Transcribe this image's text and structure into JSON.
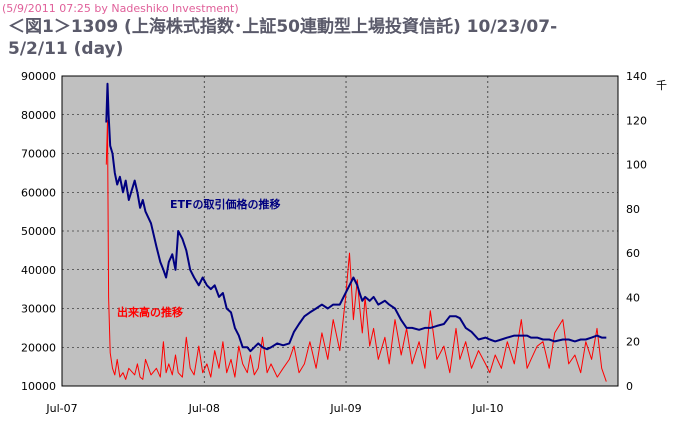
{
  "credit": "(5/9/2011 07:25 by Nadeshiko Investment)",
  "chart_data": {
    "type": "line",
    "title": "＜図1＞1309 (上海株式指数･上証50連動型上場投資信託) 10/23/07-5/2/11 (day)",
    "x_tick_labels": [
      "Jul-07",
      "Jul-08",
      "Jul-09",
      "Jul-10"
    ],
    "y_left_ticks": [
      10000,
      20000,
      30000,
      40000,
      50000,
      60000,
      70000,
      80000,
      90000
    ],
    "y_right_ticks": [
      0,
      20,
      40,
      60,
      80,
      100,
      120,
      140
    ],
    "y_right_unit": "千",
    "ylim_left": [
      10000,
      90000
    ],
    "ylim_right": [
      0,
      140
    ],
    "xlim": [
      "2007-07-01",
      "2011-06-01"
    ],
    "grid": true,
    "plot_background": "#c0c0c0",
    "series": [
      {
        "name": "ETFの取引価格の推移",
        "color": "#000080",
        "axis": "left",
        "x": [
          "2007-10-23",
          "2007-10-26",
          "2007-10-29",
          "2007-11-02",
          "2007-11-08",
          "2007-11-14",
          "2007-11-20",
          "2007-11-27",
          "2007-12-05",
          "2007-12-12",
          "2007-12-20",
          "2008-01-04",
          "2008-01-11",
          "2008-01-18",
          "2008-01-25",
          "2008-02-01",
          "2008-02-15",
          "2008-02-29",
          "2008-03-10",
          "2008-03-18",
          "2008-03-25",
          "2008-04-01",
          "2008-04-10",
          "2008-04-18",
          "2008-04-25",
          "2008-05-06",
          "2008-05-16",
          "2008-05-26",
          "2008-06-05",
          "2008-06-17",
          "2008-06-27",
          "2008-07-08",
          "2008-07-18",
          "2008-07-28",
          "2008-08-08",
          "2008-08-18",
          "2008-08-28",
          "2008-09-08",
          "2008-09-18",
          "2008-09-28",
          "2008-10-08",
          "2008-10-20",
          "2008-10-28",
          "2008-11-07",
          "2008-11-17",
          "2008-11-28",
          "2008-12-10",
          "2008-12-20",
          "2009-01-05",
          "2009-01-20",
          "2009-02-05",
          "2009-02-17",
          "2009-03-02",
          "2009-03-16",
          "2009-03-30",
          "2009-04-15",
          "2009-04-30",
          "2009-05-15",
          "2009-05-29",
          "2009-06-15",
          "2009-06-30",
          "2009-07-10",
          "2009-07-20",
          "2009-07-30",
          "2009-08-05",
          "2009-08-12",
          "2009-08-19",
          "2009-08-31",
          "2009-09-10",
          "2009-09-22",
          "2009-10-09",
          "2009-10-20",
          "2009-11-04",
          "2009-11-20",
          "2009-12-04",
          "2009-12-18",
          "2010-01-05",
          "2010-01-20",
          "2010-02-03",
          "2010-02-20",
          "2010-03-10",
          "2010-03-25",
          "2010-04-10",
          "2010-04-20",
          "2010-05-05",
          "2010-05-20",
          "2010-06-07",
          "2010-06-25",
          "2010-07-06",
          "2010-07-20",
          "2010-08-05",
          "2010-08-20",
          "2010-09-07",
          "2010-09-25",
          "2010-10-10",
          "2010-10-20",
          "2010-11-05",
          "2010-11-20",
          "2010-12-06",
          "2010-12-20",
          "2011-01-10",
          "2011-01-25",
          "2011-02-10",
          "2011-02-25",
          "2011-03-10",
          "2011-03-25",
          "2011-04-08",
          "2011-04-20",
          "2011-05-02"
        ],
        "values": [
          78000,
          88000,
          80000,
          72000,
          70000,
          65000,
          62000,
          64000,
          60000,
          63000,
          58000,
          63000,
          60000,
          56000,
          58000,
          55000,
          52000,
          46000,
          42000,
          40000,
          38000,
          42000,
          44000,
          40000,
          50000,
          48000,
          45000,
          40000,
          38000,
          36000,
          38000,
          36000,
          35000,
          36000,
          33000,
          34000,
          30000,
          29000,
          25000,
          23000,
          20000,
          20000,
          19000,
          20000,
          21000,
          20000,
          19500,
          20000,
          21000,
          20500,
          21000,
          24000,
          26000,
          28000,
          29000,
          30000,
          31000,
          30000,
          31000,
          31000,
          34000,
          36000,
          38000,
          36000,
          34000,
          32000,
          33000,
          32000,
          33000,
          31000,
          32000,
          31000,
          30000,
          27000,
          25000,
          25000,
          24500,
          25000,
          25000,
          25500,
          26000,
          28000,
          28000,
          27500,
          25000,
          24000,
          22000,
          22500,
          22000,
          21500,
          22000,
          22500,
          23000,
          23000,
          23000,
          22500,
          22500,
          22000,
          22000,
          21500,
          22000,
          22000,
          21500,
          22000,
          22000,
          22500,
          23000,
          22500,
          22500
        ]
      },
      {
        "name": "出来高の推移",
        "color": "#ff0000",
        "axis": "right",
        "x": [
          "2007-10-23",
          "2007-10-26",
          "2007-10-29",
          "2007-11-02",
          "2007-11-08",
          "2007-11-14",
          "2007-11-20",
          "2007-11-27",
          "2007-12-05",
          "2007-12-12",
          "2007-12-20",
          "2008-01-04",
          "2008-01-11",
          "2008-01-18",
          "2008-01-25",
          "2008-02-01",
          "2008-02-15",
          "2008-02-29",
          "2008-03-10",
          "2008-03-18",
          "2008-03-25",
          "2008-04-01",
          "2008-04-10",
          "2008-04-18",
          "2008-04-25",
          "2008-05-06",
          "2008-05-16",
          "2008-05-26",
          "2008-06-05",
          "2008-06-17",
          "2008-06-27",
          "2008-07-08",
          "2008-07-18",
          "2008-07-28",
          "2008-08-08",
          "2008-08-18",
          "2008-08-28",
          "2008-09-08",
          "2008-09-18",
          "2008-09-28",
          "2008-10-08",
          "2008-10-20",
          "2008-10-28",
          "2008-11-07",
          "2008-11-17",
          "2008-11-28",
          "2008-12-10",
          "2008-12-20",
          "2009-01-05",
          "2009-01-20",
          "2009-02-05",
          "2009-02-17",
          "2009-03-02",
          "2009-03-16",
          "2009-03-30",
          "2009-04-15",
          "2009-04-30",
          "2009-05-15",
          "2009-05-29",
          "2009-06-15",
          "2009-06-30",
          "2009-07-10",
          "2009-07-20",
          "2009-07-30",
          "2009-08-05",
          "2009-08-12",
          "2009-08-19",
          "2009-08-31",
          "2009-09-10",
          "2009-09-22",
          "2009-10-09",
          "2009-10-20",
          "2009-11-04",
          "2009-11-20",
          "2009-12-04",
          "2009-12-18",
          "2010-01-05",
          "2010-01-20",
          "2010-02-03",
          "2010-02-20",
          "2010-03-10",
          "2010-03-25",
          "2010-04-10",
          "2010-04-20",
          "2010-05-05",
          "2010-05-20",
          "2010-06-07",
          "2010-06-25",
          "2010-07-06",
          "2010-07-20",
          "2010-08-05",
          "2010-08-20",
          "2010-09-07",
          "2010-09-25",
          "2010-10-10",
          "2010-10-20",
          "2010-11-05",
          "2010-11-20",
          "2010-12-06",
          "2010-12-20",
          "2011-01-10",
          "2011-01-25",
          "2011-02-10",
          "2011-02-25",
          "2011-03-10",
          "2011-03-25",
          "2011-04-08",
          "2011-04-20",
          "2011-05-02"
        ],
        "values": [
          100,
          120,
          40,
          15,
          8,
          5,
          12,
          4,
          6,
          3,
          8,
          5,
          10,
          4,
          3,
          12,
          5,
          8,
          4,
          20,
          6,
          10,
          5,
          14,
          6,
          4,
          22,
          8,
          5,
          18,
          6,
          10,
          4,
          16,
          8,
          20,
          6,
          12,
          4,
          18,
          10,
          6,
          14,
          5,
          8,
          22,
          6,
          10,
          4,
          8,
          12,
          18,
          6,
          10,
          20,
          8,
          24,
          12,
          30,
          16,
          40,
          60,
          30,
          48,
          36,
          24,
          40,
          18,
          26,
          12,
          22,
          10,
          30,
          14,
          26,
          10,
          20,
          8,
          34,
          12,
          18,
          6,
          26,
          12,
          20,
          8,
          16,
          10,
          6,
          14,
          8,
          20,
          10,
          30,
          8,
          12,
          18,
          20,
          8,
          24,
          30,
          10,
          14,
          6,
          20,
          12,
          26,
          8,
          2
        ]
      }
    ],
    "annotations": [
      {
        "text": "ETFの取引価格の推移",
        "color": "#000080"
      },
      {
        "text": "出来高の推移",
        "color": "#ff0000"
      }
    ]
  }
}
